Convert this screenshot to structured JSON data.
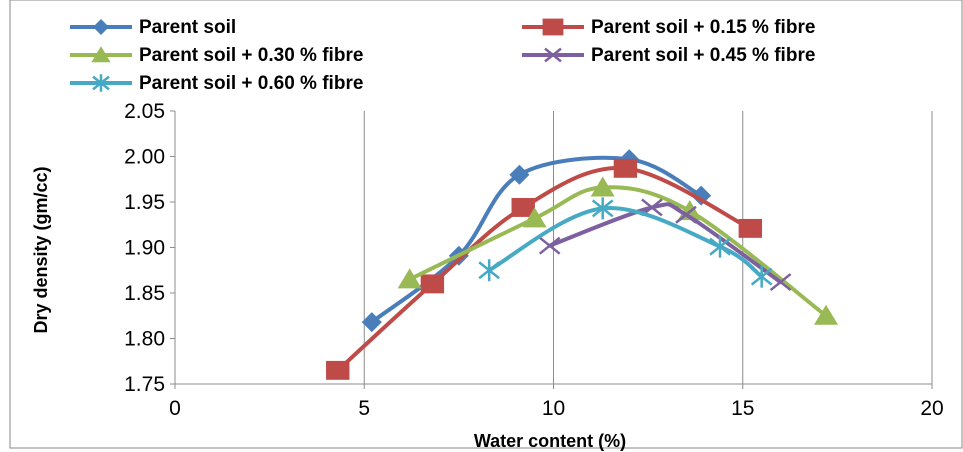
{
  "chart_data": {
    "type": "scatter",
    "title": "",
    "xlabel": "Water content (%)",
    "ylabel": "Dry density (gm/cc)",
    "xlim": [
      0,
      20
    ],
    "ylim": [
      1.75,
      2.05
    ],
    "xticks": [
      0,
      5,
      10,
      15,
      20
    ],
    "yticks": [
      1.75,
      1.8,
      1.85,
      1.9,
      1.95,
      2.0,
      2.05
    ],
    "ytick_labels": [
      "1.75",
      "1.80",
      "1.85",
      "1.90",
      "1.95",
      "2.00",
      "2.05"
    ],
    "xtick_labels": [
      "0",
      "5",
      "10",
      "15",
      "20"
    ],
    "grid": "vertical",
    "legend_position": "top",
    "series": [
      {
        "name": "Parent soil",
        "color": "#4a7ebb",
        "marker": "diamond",
        "x": [
          5.2,
          7.5,
          9.1,
          12.0,
          13.9
        ],
        "y": [
          1.818,
          1.891,
          1.98,
          1.997,
          1.957
        ]
      },
      {
        "name": "Parent soil + 0.15 % fibre",
        "color": "#be4b48",
        "marker": "square",
        "x": [
          4.3,
          6.8,
          9.2,
          11.9,
          15.2
        ],
        "y": [
          1.765,
          1.86,
          1.944,
          1.987,
          1.921
        ]
      },
      {
        "name": "Parent soil + 0.30 % fibre",
        "color": "#98b954",
        "marker": "triangle",
        "x": [
          6.2,
          9.5,
          11.3,
          13.6,
          17.2
        ],
        "y": [
          1.865,
          1.932,
          1.966,
          1.94,
          1.825
        ]
      },
      {
        "name": "Parent soil + 0.45 % fibre",
        "color": "#7d60a0",
        "marker": "x",
        "x": [
          9.9,
          12.6,
          13.5,
          16.0
        ],
        "y": [
          1.902,
          1.944,
          1.936,
          1.862
        ]
      },
      {
        "name": "Parent soil + 0.60 % fibre",
        "color": "#46aac5",
        "marker": "star",
        "x": [
          8.3,
          11.3,
          14.4,
          15.5
        ],
        "y": [
          1.875,
          1.943,
          1.901,
          1.868
        ]
      }
    ]
  }
}
